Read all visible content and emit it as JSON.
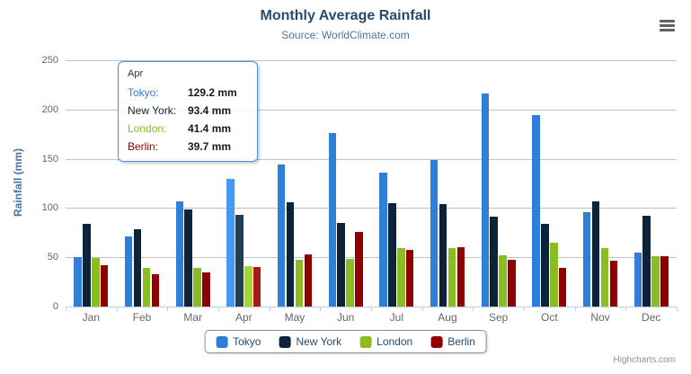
{
  "chart": {
    "credits": "Highcharts.com",
    "menu_icon": "hamburger-icon"
  },
  "chart_data": {
    "type": "bar",
    "title": "Monthly Average Rainfall",
    "subtitle": "Source: WorldClimate.com",
    "ylabel": "Rainfall (mm)",
    "xlabel": "",
    "categories": [
      "Jan",
      "Feb",
      "Mar",
      "Apr",
      "May",
      "Jun",
      "Jul",
      "Aug",
      "Sep",
      "Oct",
      "Nov",
      "Dec"
    ],
    "series": [
      {
        "name": "Tokyo",
        "color": "#2f7ed8",
        "hover_color": "#4897f1",
        "values": [
          49.9,
          71.5,
          106.4,
          129.2,
          144.0,
          176.0,
          135.6,
          148.5,
          216.4,
          194.1,
          95.6,
          54.4
        ]
      },
      {
        "name": "New York",
        "color": "#0d233a",
        "hover_color": "#263c53",
        "values": [
          83.6,
          78.8,
          98.5,
          93.4,
          106.0,
          84.5,
          105.0,
          104.3,
          91.2,
          83.5,
          106.6,
          92.3
        ]
      },
      {
        "name": "London",
        "color": "#8bbc21",
        "hover_color": "#a4d53a",
        "values": [
          48.9,
          38.8,
          39.3,
          41.4,
          47.0,
          48.3,
          59.0,
          59.6,
          52.4,
          65.2,
          59.3,
          51.2
        ]
      },
      {
        "name": "Berlin",
        "color": "#910000",
        "hover_color": "#aa1919",
        "values": [
          42.4,
          33.2,
          34.5,
          39.7,
          52.6,
          75.5,
          57.4,
          60.4,
          47.6,
          39.1,
          46.8,
          51.1
        ]
      }
    ],
    "ylim": [
      0,
      250
    ],
    "y_ticks": [
      0,
      50,
      100,
      150,
      200,
      250
    ],
    "grid": true,
    "legend_position": "bottom",
    "hovered_category": "Apr"
  },
  "tooltip": {
    "header": "Apr",
    "border_color": "#4a90e2",
    "rows": [
      {
        "name": "Tokyo:",
        "value": "129.2 mm",
        "color": "#2f7ed8"
      },
      {
        "name": "New York:",
        "value": "93.4 mm",
        "color": "#0d233a"
      },
      {
        "name": "London:",
        "value": "41.4 mm",
        "color": "#8bbc21"
      },
      {
        "name": "Berlin:",
        "value": "39.7 mm",
        "color": "#910000"
      }
    ]
  }
}
